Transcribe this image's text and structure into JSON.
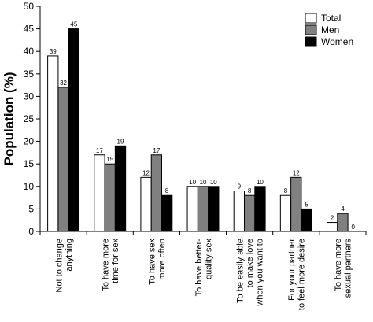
{
  "chart_data": {
    "type": "bar",
    "ylabel": "Population (%)",
    "ylim": [
      0,
      50
    ],
    "yticks": [
      0,
      5,
      10,
      15,
      20,
      25,
      30,
      35,
      40,
      45,
      50
    ],
    "grid": false,
    "legend_position": "top-right",
    "categories": [
      [
        "Not to change",
        "anything"
      ],
      [
        "To have more",
        "time for sex"
      ],
      [
        "To have sex",
        "more often"
      ],
      [
        "To have better-",
        "quality sex"
      ],
      [
        "To be easily able",
        "to make love",
        "when you want to"
      ],
      [
        "For your partner",
        "to feel more desire"
      ],
      [
        "To have more",
        "sexual partners"
      ]
    ],
    "series": [
      {
        "name": "Total",
        "color": "#ffffff",
        "values": [
          39,
          17,
          12,
          10,
          9,
          8,
          2
        ]
      },
      {
        "name": "Men",
        "color": "#808080",
        "values": [
          32,
          15,
          17,
          10,
          8,
          12,
          4
        ]
      },
      {
        "name": "Women",
        "color": "#000000",
        "values": [
          45,
          19,
          8,
          10,
          10,
          5,
          0
        ]
      }
    ]
  }
}
